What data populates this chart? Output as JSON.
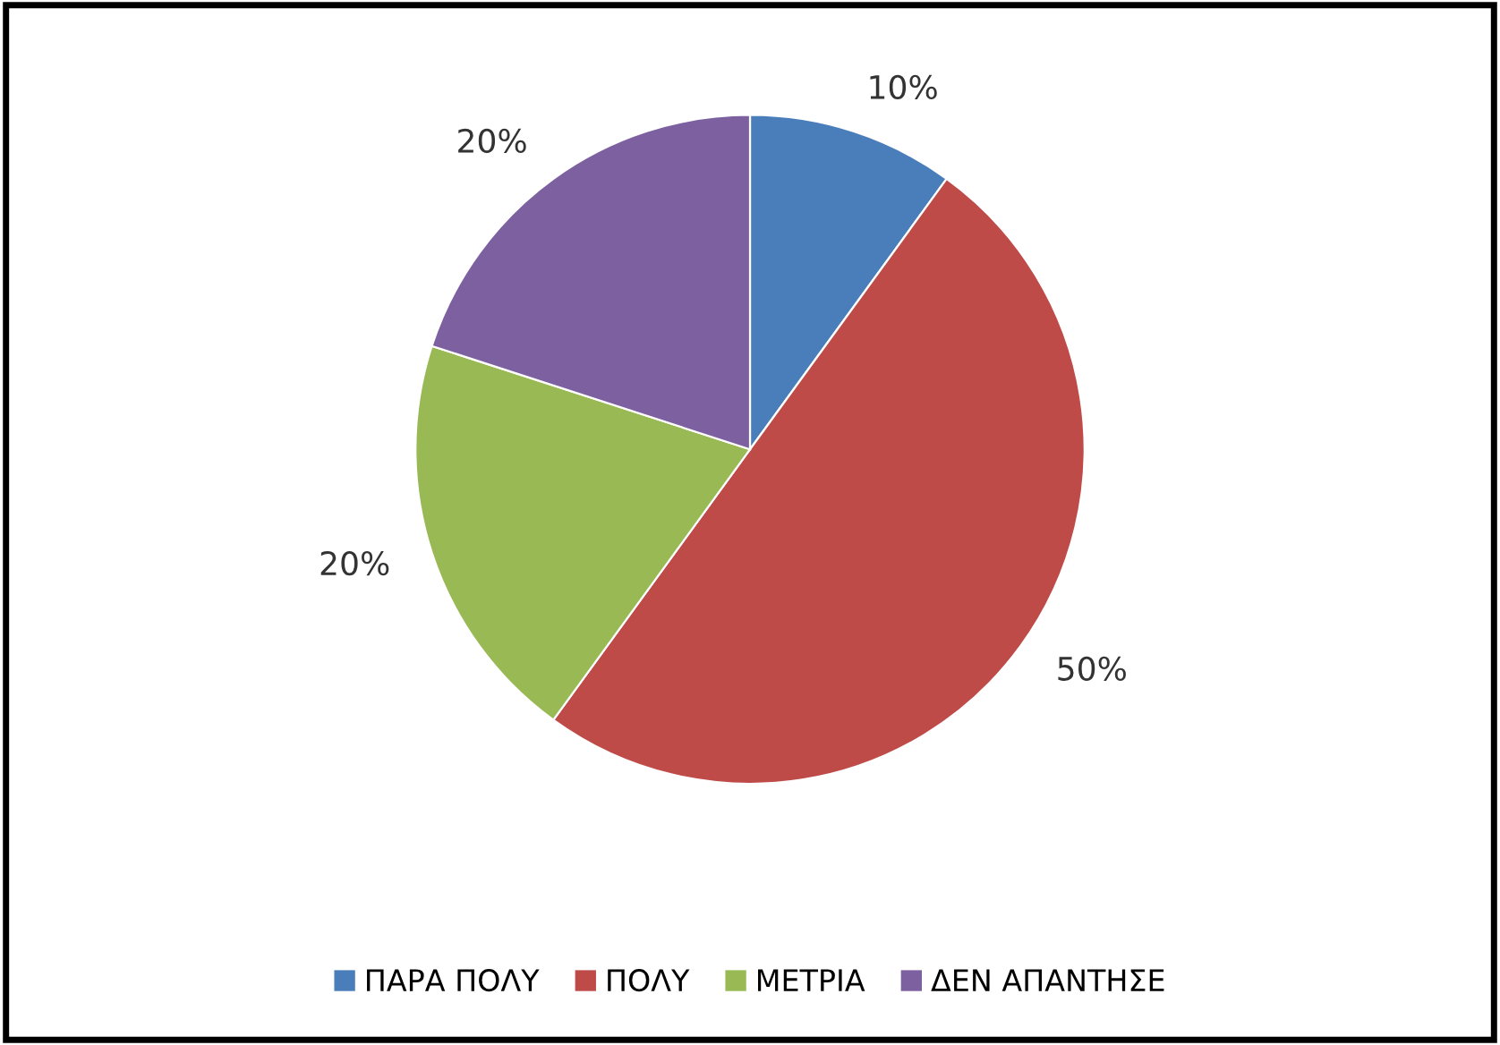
{
  "chart_data": {
    "type": "pie",
    "categories": [
      "ΠΑΡΑ ΠΟΛΥ",
      "ΠΟΛΥ",
      "ΜΕΤΡΙΑ",
      "ΔΕΝ ΑΠΑΝΤΗΣΕ"
    ],
    "values": [
      10,
      50,
      20,
      20
    ],
    "value_labels": [
      "10%",
      "50%",
      "20%",
      "20%"
    ],
    "colors": [
      "#4a7ebb",
      "#be4b48",
      "#98b954",
      "#7d60a0"
    ],
    "legend": "bottom"
  }
}
